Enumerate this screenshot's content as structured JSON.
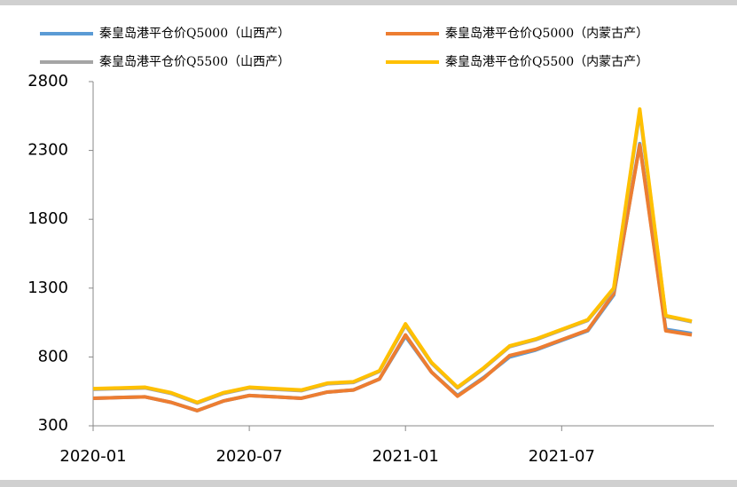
{
  "chart_data": {
    "type": "line",
    "x": [
      "2020-01",
      "2020-02",
      "2020-03",
      "2020-04",
      "2020-05",
      "2020-06",
      "2020-07",
      "2020-08",
      "2020-09",
      "2020-10",
      "2020-11",
      "2020-12",
      "2021-01",
      "2021-02",
      "2021-03",
      "2021-04",
      "2021-05",
      "2021-06",
      "2021-07",
      "2021-08",
      "2021-09",
      "2021-10",
      "2021-11",
      "2021-12"
    ],
    "series": [
      {
        "name": "秦皇岛港平仓价Q5000（山西产）",
        "color": "#5b9bd5",
        "values": [
          500,
          505,
          510,
          470,
          410,
          480,
          520,
          510,
          500,
          545,
          560,
          640,
          950,
          690,
          520,
          650,
          800,
          850,
          920,
          990,
          1250,
          2350,
          1000,
          970
        ]
      },
      {
        "name": "秦皇岛港平仓价Q5000（内蒙古产）",
        "color": "#ed7d31",
        "values": [
          500,
          505,
          510,
          470,
          410,
          480,
          520,
          510,
          500,
          545,
          560,
          640,
          960,
          690,
          515,
          645,
          810,
          855,
          925,
          995,
          1260,
          2340,
          990,
          960
        ]
      },
      {
        "name": "秦皇岛港平仓价Q5500（山西产）",
        "color": "#a5a5a5",
        "values": [
          565,
          570,
          575,
          535,
          465,
          535,
          575,
          565,
          555,
          605,
          615,
          695,
          1030,
          755,
          575,
          715,
          875,
          925,
          995,
          1065,
          1290,
          2580,
          1095,
          1055
        ]
      },
      {
        "name": "秦皇岛港平仓价Q5500（内蒙古产）",
        "color": "#ffc000",
        "values": [
          570,
          575,
          580,
          540,
          470,
          540,
          580,
          570,
          560,
          610,
          620,
          700,
          1040,
          760,
          580,
          720,
          880,
          930,
          1000,
          1070,
          1300,
          2600,
          1100,
          1060
        ]
      }
    ],
    "ylim": [
      300,
      2800
    ],
    "yticks": [
      300,
      800,
      1300,
      1800,
      2300,
      2800
    ],
    "xticks": [
      "2020-01",
      "2020-07",
      "2021-01",
      "2021-07"
    ]
  }
}
